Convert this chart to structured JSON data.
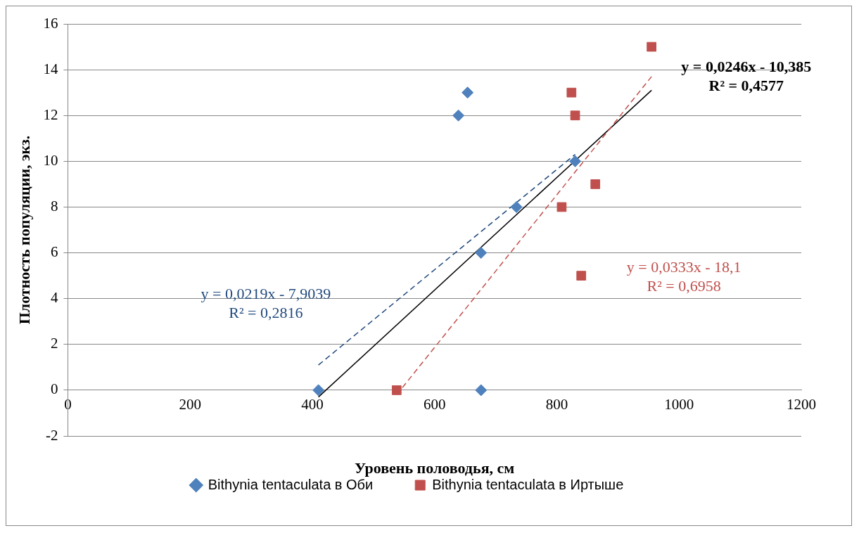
{
  "chart_data": {
    "type": "scatter",
    "xlabel": "Уровень половодья, см",
    "ylabel": "Плотность популяции, экз.",
    "xlim": [
      0,
      1200
    ],
    "xticks": [
      0,
      200,
      400,
      600,
      800,
      1000,
      1200
    ],
    "ylim": [
      -2,
      16
    ],
    "yticks": [
      -2,
      0,
      2,
      4,
      6,
      8,
      10,
      12,
      14,
      16
    ],
    "grid": "y",
    "legend": "bottom",
    "series": [
      {
        "name": "Bithynia tentaculata в Оби",
        "color": "#4f81bd",
        "marker": "diamond",
        "x": [
          410,
          639,
          654,
          676,
          676,
          734,
          830
        ],
        "values": [
          0,
          12,
          13,
          6,
          0,
          8,
          10
        ]
      },
      {
        "name": "Bithynia tentaculata в Иртыше",
        "color": "#c0504d",
        "marker": "square",
        "x": [
          538,
          808,
          824,
          830,
          840,
          863,
          955
        ],
        "values": [
          0,
          8,
          13,
          12,
          5,
          9,
          15
        ]
      },
      {
        "type": "line",
        "color": "#1f497d",
        "line_style": "dashed",
        "marker": "none",
        "x": [
          410,
          830
        ],
        "values": [
          1.1,
          10.3
        ]
      },
      {
        "type": "line",
        "color": "#c0504d",
        "line_style": "dashed",
        "marker": "none",
        "x": [
          538,
          955
        ],
        "values": [
          -0.2,
          13.7
        ]
      },
      {
        "type": "line",
        "color": "#000000",
        "line_style": "solid",
        "marker": "none",
        "x": [
          410,
          955
        ],
        "values": [
          -0.3,
          13.1
        ]
      }
    ],
    "annotations": [
      "y = 0,0219x - 7,9039\nR² = 0,2816",
      "y = 0,0333x - 18,1\nR² = 0,6958",
      "y = 0,0246x - 10,385\nR² = 0,4577"
    ]
  }
}
